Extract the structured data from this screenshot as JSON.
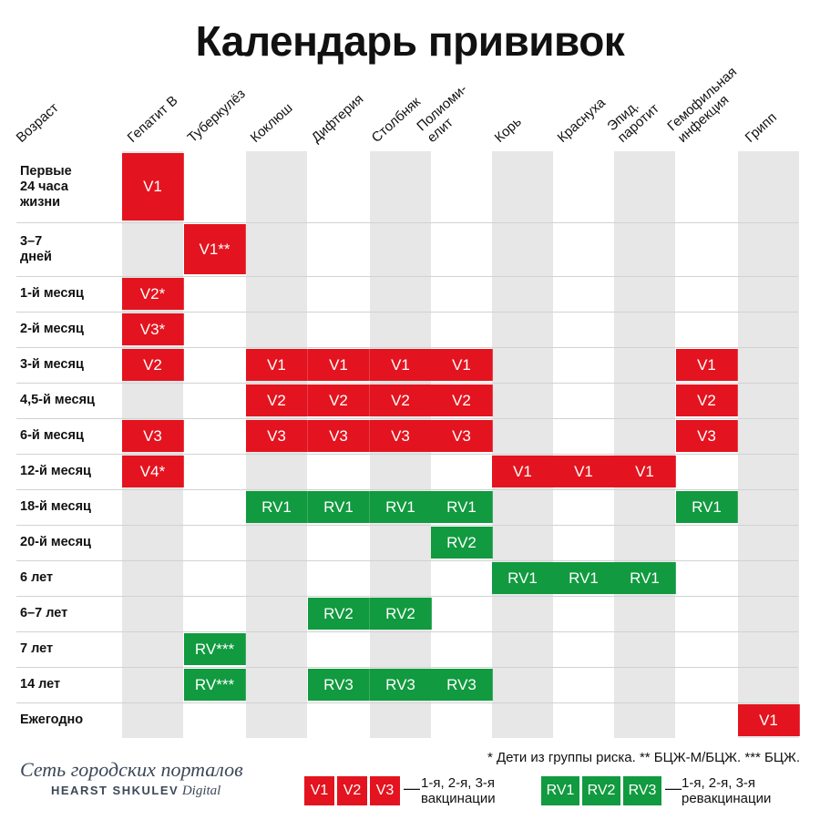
{
  "title": "Календарь прививок",
  "column_headers": [
    {
      "id": "age",
      "lines": [
        "Возраст"
      ]
    },
    {
      "id": "hepatitis-b",
      "lines": [
        "Гепатит В"
      ]
    },
    {
      "id": "tuberculosis",
      "lines": [
        "Туберкулёз"
      ]
    },
    {
      "id": "pertussis",
      "lines": [
        "Коклюш"
      ]
    },
    {
      "id": "diphtheria",
      "lines": [
        "Дифтерия"
      ]
    },
    {
      "id": "tetanus",
      "lines": [
        "Столбняк"
      ]
    },
    {
      "id": "polio",
      "lines": [
        "Полиоми-",
        "елит"
      ]
    },
    {
      "id": "measles",
      "lines": [
        "Корь"
      ]
    },
    {
      "id": "rubella",
      "lines": [
        "Краснуха"
      ]
    },
    {
      "id": "mumps",
      "lines": [
        "Эпид.",
        "паротит"
      ]
    },
    {
      "id": "hib",
      "lines": [
        "Гемофильная",
        "инфекция"
      ]
    },
    {
      "id": "influenza",
      "lines": [
        "Грипп"
      ]
    }
  ],
  "rows": [
    {
      "label": "Первые\n24 часа\nжизни",
      "cells": [
        {
          "col": 0,
          "text": "V1",
          "kind": "v"
        }
      ]
    },
    {
      "label": "3–7\nдней",
      "cells": [
        {
          "col": 1,
          "text": "V1**",
          "kind": "v"
        }
      ]
    },
    {
      "label": "1-й месяц",
      "cells": [
        {
          "col": 0,
          "text": "V2*",
          "kind": "v"
        }
      ]
    },
    {
      "label": "2-й месяц",
      "cells": [
        {
          "col": 0,
          "text": "V3*",
          "kind": "v"
        }
      ]
    },
    {
      "label": "3-й месяц",
      "cells": [
        {
          "col": 0,
          "text": "V2",
          "kind": "v"
        },
        {
          "col": 2,
          "text": "V1",
          "kind": "v"
        },
        {
          "col": 3,
          "text": "V1",
          "kind": "v"
        },
        {
          "col": 4,
          "text": "V1",
          "kind": "v"
        },
        {
          "col": 5,
          "text": "V1",
          "kind": "v"
        },
        {
          "col": 9,
          "text": "V1",
          "kind": "v"
        }
      ]
    },
    {
      "label": "4,5-й месяц",
      "cells": [
        {
          "col": 2,
          "text": "V2",
          "kind": "v"
        },
        {
          "col": 3,
          "text": "V2",
          "kind": "v"
        },
        {
          "col": 4,
          "text": "V2",
          "kind": "v"
        },
        {
          "col": 5,
          "text": "V2",
          "kind": "v"
        },
        {
          "col": 9,
          "text": "V2",
          "kind": "v"
        }
      ]
    },
    {
      "label": "6-й месяц",
      "cells": [
        {
          "col": 0,
          "text": "V3",
          "kind": "v"
        },
        {
          "col": 2,
          "text": "V3",
          "kind": "v"
        },
        {
          "col": 3,
          "text": "V3",
          "kind": "v"
        },
        {
          "col": 4,
          "text": "V3",
          "kind": "v"
        },
        {
          "col": 5,
          "text": "V3",
          "kind": "v"
        },
        {
          "col": 9,
          "text": "V3",
          "kind": "v"
        }
      ]
    },
    {
      "label": "12-й месяц",
      "cells": [
        {
          "col": 0,
          "text": "V4*",
          "kind": "v"
        },
        {
          "col": 6,
          "text": "V1",
          "kind": "v"
        },
        {
          "col": 7,
          "text": "V1",
          "kind": "v"
        },
        {
          "col": 8,
          "text": "V1",
          "kind": "v"
        }
      ]
    },
    {
      "label": "18-й месяц",
      "cells": [
        {
          "col": 2,
          "text": "RV1",
          "kind": "rv"
        },
        {
          "col": 3,
          "text": "RV1",
          "kind": "rv"
        },
        {
          "col": 4,
          "text": "RV1",
          "kind": "rv"
        },
        {
          "col": 5,
          "text": "RV1",
          "kind": "rv"
        },
        {
          "col": 9,
          "text": "RV1",
          "kind": "rv"
        }
      ]
    },
    {
      "label": "20-й месяц",
      "cells": [
        {
          "col": 5,
          "text": "RV2",
          "kind": "rv"
        }
      ]
    },
    {
      "label": "6 лет",
      "cells": [
        {
          "col": 6,
          "text": "RV1",
          "kind": "rv"
        },
        {
          "col": 7,
          "text": "RV1",
          "kind": "rv"
        },
        {
          "col": 8,
          "text": "RV1",
          "kind": "rv"
        }
      ]
    },
    {
      "label": "6–7 лет",
      "cells": [
        {
          "col": 3,
          "text": "RV2",
          "kind": "rv"
        },
        {
          "col": 4,
          "text": "RV2",
          "kind": "rv"
        }
      ]
    },
    {
      "label": "7 лет",
      "cells": [
        {
          "col": 1,
          "text": "RV***",
          "kind": "rv"
        }
      ]
    },
    {
      "label": "14 лет",
      "cells": [
        {
          "col": 1,
          "text": "RV***",
          "kind": "rv"
        },
        {
          "col": 3,
          "text": "RV3",
          "kind": "rv"
        },
        {
          "col": 4,
          "text": "RV3",
          "kind": "rv"
        },
        {
          "col": 5,
          "text": "RV3",
          "kind": "rv"
        }
      ]
    },
    {
      "label": "Ежегодно",
      "cells": [
        {
          "col": 10,
          "text": "V1",
          "kind": "v"
        }
      ]
    }
  ],
  "footnote": "* Дети из группы риска. ** БЦЖ-М/БЦЖ. *** БЦЖ.",
  "legend": {
    "vaccination": {
      "boxes": [
        "V1",
        "V2",
        "V3"
      ],
      "dash": "—",
      "lines": [
        "1-я, 2-я, 3-я",
        "вакцинации"
      ]
    },
    "revaccination": {
      "boxes": [
        "RV1",
        "RV2",
        "RV3"
      ],
      "dash": "—",
      "lines": [
        "1-я, 2-я, 3-я",
        "ревакцинации"
      ]
    }
  },
  "logo": {
    "line1": "Сеть городских порталов",
    "brand": "HEARST SHKULEV",
    "suffix": "Digital"
  },
  "colors": {
    "vaccination": "#e3141f",
    "revaccination": "#119a3f",
    "stripe": "#e7e7e7"
  }
}
